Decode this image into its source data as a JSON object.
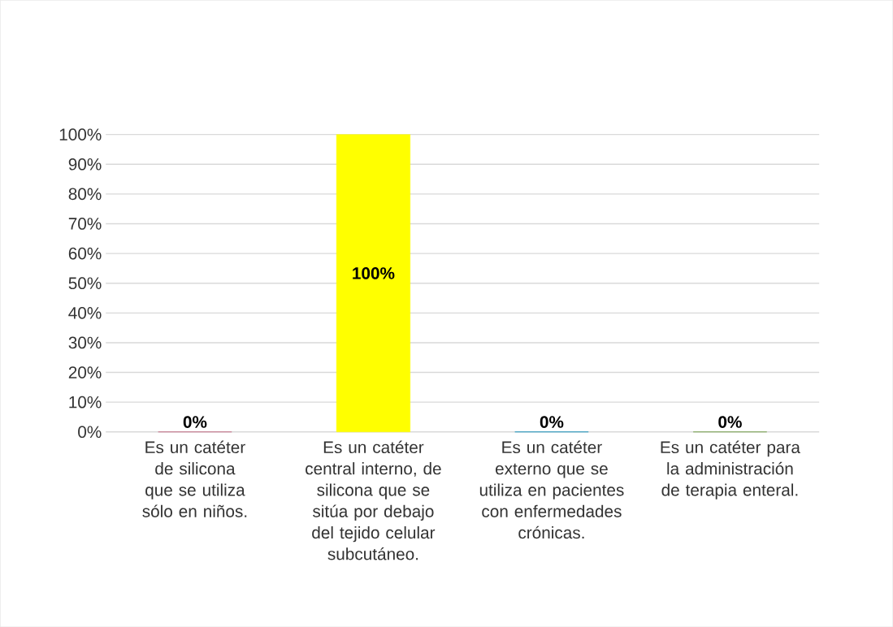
{
  "chart_data": {
    "type": "bar",
    "categories": [
      "Es un catéter de silicona que se utiliza sólo en niños.",
      "Es un catéter central interno, de silicona que se sitúa por debajo del tejido celular subcutáneo.",
      "Es un catéter externo que se utiliza en pacientes con enfermedades crónicas.",
      "Es un catéter  para la administración de terapia enteral."
    ],
    "values": [
      0,
      100,
      0,
      0
    ],
    "colors": [
      "#c0607a",
      "#ffff00",
      "#0088b8",
      "#6a9a3a"
    ],
    "value_labels": [
      "0%",
      "100%",
      "0%",
      "0%"
    ],
    "ylim": [
      0,
      100
    ],
    "yticks": [
      {
        "value": 0,
        "label": "0%"
      },
      {
        "value": 10,
        "label": "10%"
      },
      {
        "value": 20,
        "label": "20%"
      },
      {
        "value": 30,
        "label": "30%"
      },
      {
        "value": 40,
        "label": "40%"
      },
      {
        "value": 50,
        "label": "50%"
      },
      {
        "value": 60,
        "label": "60%"
      },
      {
        "value": 70,
        "label": "70%"
      },
      {
        "value": 80,
        "label": "80%"
      },
      {
        "value": 90,
        "label": "90%"
      },
      {
        "value": 100,
        "label": "100%"
      }
    ],
    "grid": "y"
  }
}
